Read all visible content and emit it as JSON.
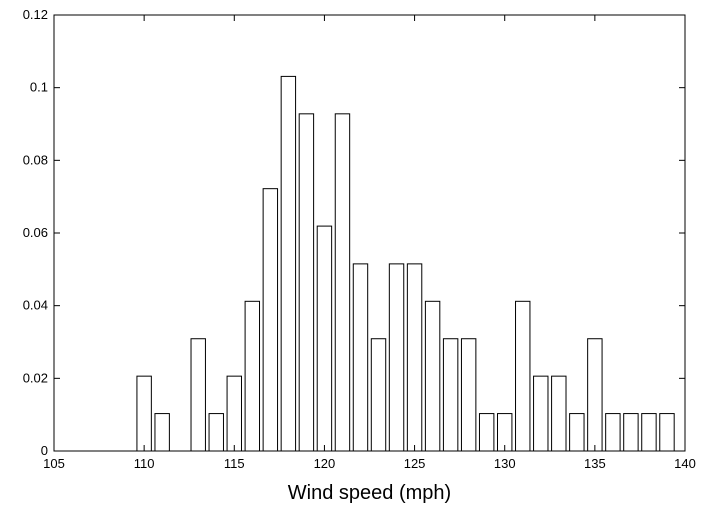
{
  "chart_data": {
    "type": "bar",
    "title": "",
    "xlabel": "Wind speed (mph)",
    "ylabel": "",
    "xlim": [
      105,
      140
    ],
    "ylim": [
      0,
      0.12
    ],
    "x_ticks": [
      105,
      110,
      115,
      120,
      125,
      130,
      135,
      140
    ],
    "y_ticks": [
      0,
      0.02,
      0.04,
      0.06,
      0.08,
      0.1,
      0.12
    ],
    "x_tick_labels": [
      "105",
      "110",
      "115",
      "120",
      "125",
      "130",
      "135",
      "140"
    ],
    "y_tick_labels": [
      "0",
      "0.02",
      "0.04",
      "0.06",
      "0.08",
      "0.1",
      "0.12"
    ],
    "bar_width": 0.8,
    "grid": false,
    "bar_fill": "#ffffff",
    "bar_stroke": "#000000",
    "series": [
      {
        "x": [
          110,
          111,
          113,
          114,
          115,
          116,
          117,
          118,
          119,
          120,
          121,
          122,
          123,
          124,
          125,
          126,
          127,
          128,
          129,
          130,
          131,
          132,
          133,
          134,
          135,
          136,
          137,
          138,
          139
        ],
        "values": [
          0.0206,
          0.0103,
          0.0309,
          0.0103,
          0.0206,
          0.0412,
          0.0722,
          0.1031,
          0.0928,
          0.0619,
          0.0928,
          0.0515,
          0.0309,
          0.0515,
          0.0515,
          0.0412,
          0.0309,
          0.0309,
          0.0103,
          0.0103,
          0.0412,
          0.0206,
          0.0206,
          0.0103,
          0.0309,
          0.0103,
          0.0103,
          0.0103,
          0.0103
        ]
      }
    ]
  }
}
